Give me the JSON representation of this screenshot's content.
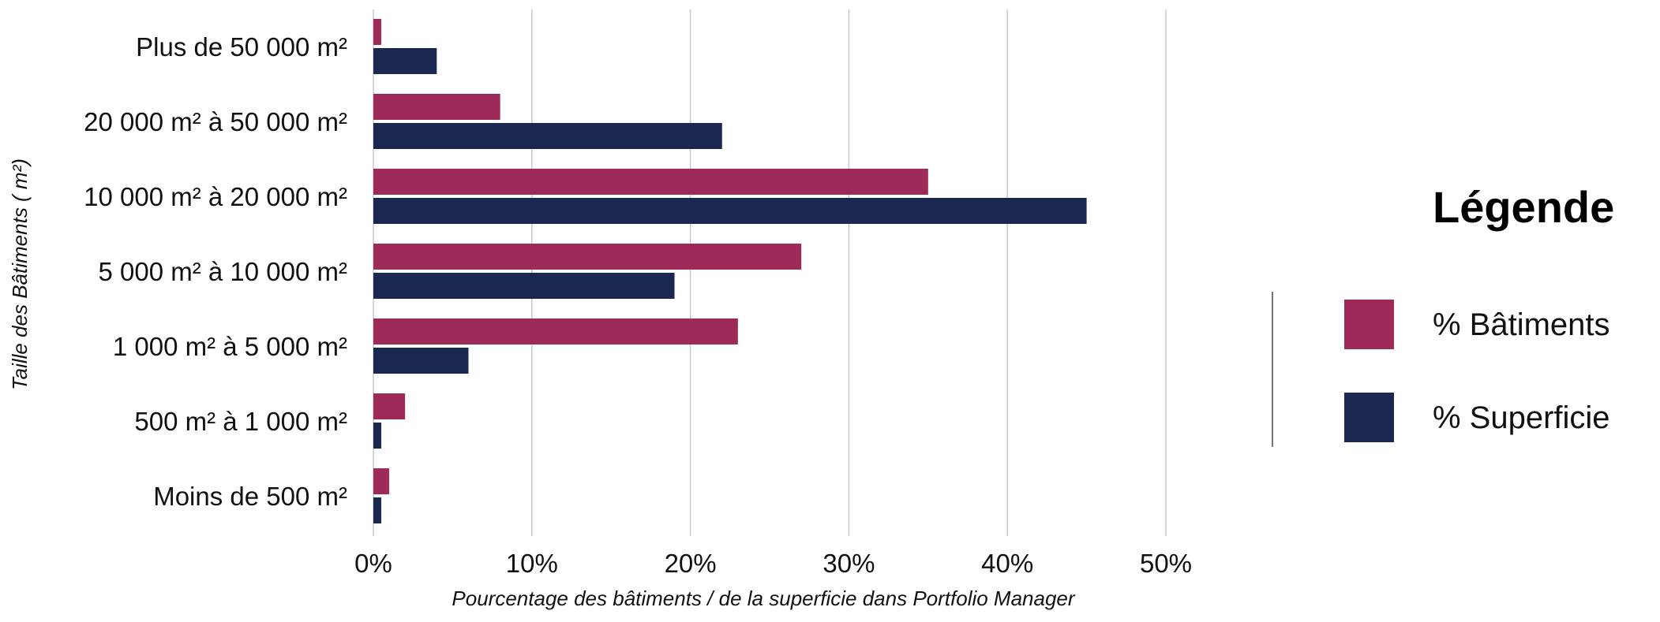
{
  "chart_data": {
    "type": "bar",
    "orientation": "horizontal",
    "categories": [
      "Plus de 50 000 m²",
      "20 000 m² à 50 000 m²",
      "10 000 m² à 20 000 m²",
      "5 000 m² à 10 000 m²",
      "1 000 m² à 5 000 m²",
      "500 m² à 1 000 m²",
      "Moins de 500 m²"
    ],
    "series": [
      {
        "name": "% Bâtiments",
        "color": "#9e2a5a",
        "values": [
          0.5,
          8,
          35,
          27,
          23,
          2,
          1
        ]
      },
      {
        "name": "% Superficie",
        "color": "#1a2751",
        "values": [
          4,
          22,
          45,
          19,
          6,
          0.5,
          0.5
        ]
      }
    ],
    "xlim": [
      0,
      50
    ],
    "xticks": [
      "0%",
      "10%",
      "20%",
      "30%",
      "40%",
      "50%"
    ],
    "xlabel": "Pourcentage des bâtiments / de la superficie dans Portfolio Manager",
    "ylabel": "Taille des Bâtiments ( m²)",
    "grid": "vertical",
    "legend": {
      "title": "Légende",
      "placement": "right"
    }
  }
}
